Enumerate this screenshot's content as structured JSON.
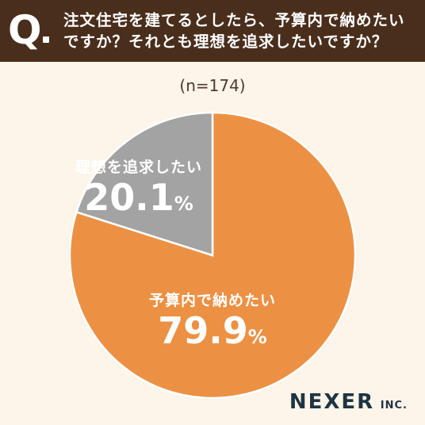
{
  "header": {
    "q": "Q",
    "question_line1": "注文住宅を建てるとしたら、予算内で納めたい",
    "question_line2": "ですか？それとも理想を追求したいですか？"
  },
  "sample_size": "(n=174)",
  "colors": {
    "orange": "#ec9144",
    "gray": "#a3a3a3",
    "header": "#4a2e1c",
    "background": "#fdf4ea"
  },
  "chart_data": {
    "type": "pie",
    "slices": [
      {
        "label": "予算内で納めたい",
        "value": 79.9,
        "display": "79.9",
        "unit": "%",
        "color": "#ec9144"
      },
      {
        "label": "理想を追求したい",
        "value": 20.1,
        "display": "20.1",
        "unit": "%",
        "color": "#a3a3a3"
      }
    ]
  },
  "logo": {
    "main": "NEXER",
    "suffix": "INC."
  }
}
